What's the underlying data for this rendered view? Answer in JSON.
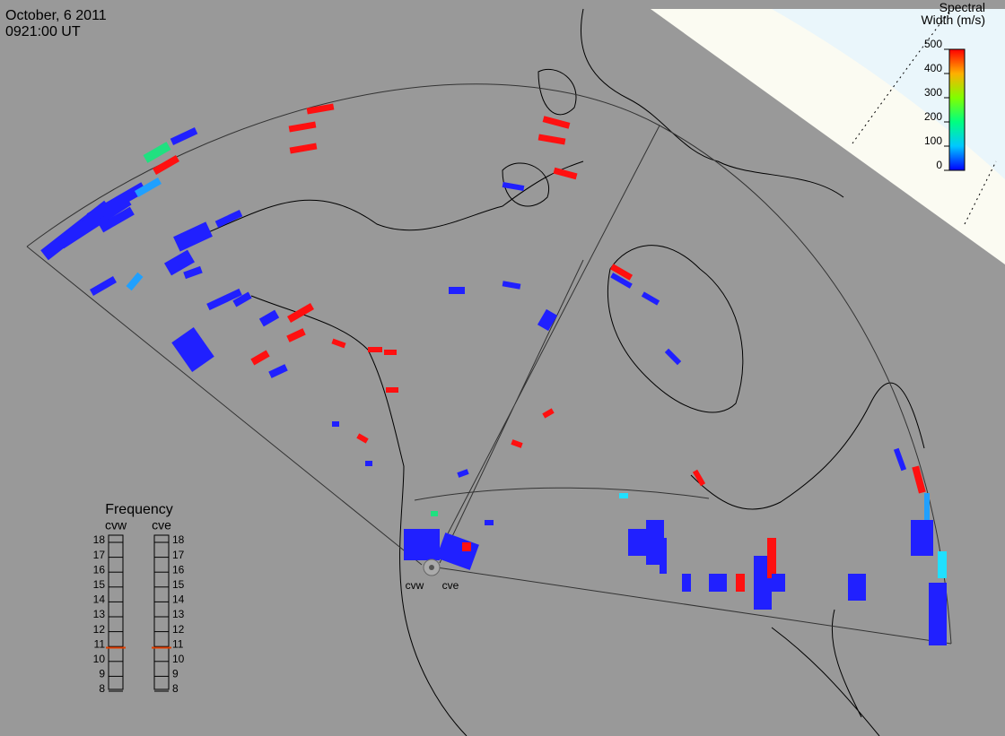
{
  "header": {
    "date": "October, 6 2011",
    "time": "0921:00 UT"
  },
  "colorbar": {
    "title": "Spectral Width (m/s)",
    "lim": [
      0,
      500
    ],
    "ticks": [
      500,
      400,
      300,
      200,
      100,
      0
    ]
  },
  "frequency": {
    "title": "Frequency",
    "lim": [
      8,
      18
    ],
    "ticks": [
      18,
      17,
      16,
      15,
      14,
      13,
      12,
      11,
      10,
      9,
      8
    ],
    "radars": [
      {
        "name": "cvw",
        "value": 10.8
      },
      {
        "name": "cve",
        "value": 10.8
      }
    ]
  },
  "stations": [
    "cvw",
    "cve"
  ]
}
